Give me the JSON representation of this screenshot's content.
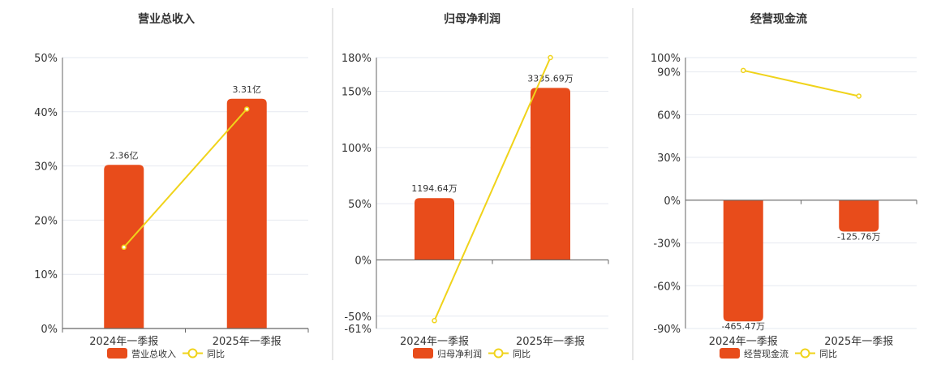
{
  "colors": {
    "bar": "#e84c1b",
    "line": "#f0d31a",
    "grid": "#e6e9f0",
    "axis": "#666666",
    "divider": "#cccccc"
  },
  "chart_data": [
    {
      "type": "bar",
      "title": "营业总收入",
      "categories": [
        "2024年一季报",
        "2025年一季报"
      ],
      "series": [
        {
          "name": "营业总收入",
          "type": "bar",
          "values": [
            30.2,
            42.4
          ],
          "labels": [
            "2.36亿",
            "3.31亿"
          ]
        },
        {
          "name": "同比",
          "type": "line",
          "values": [
            15.0,
            40.5
          ]
        }
      ],
      "ylim": [
        0,
        50
      ],
      "yticks": [
        {
          "value": 0,
          "label": "0%"
        },
        {
          "value": 10,
          "label": "10%"
        },
        {
          "value": 20,
          "label": "20%"
        },
        {
          "value": 30,
          "label": "30%"
        },
        {
          "value": 40,
          "label": "40%"
        },
        {
          "value": 50,
          "label": "50%"
        }
      ],
      "grid": true,
      "legend": "bottom"
    },
    {
      "type": "bar",
      "title": "归母净利润",
      "categories": [
        "2024年一季报",
        "2025年一季报"
      ],
      "series": [
        {
          "name": "归母净利润",
          "type": "bar",
          "values": [
            55,
            153
          ],
          "labels": [
            "1194.64万",
            "3335.69万"
          ]
        },
        {
          "name": "同比",
          "type": "line",
          "values": [
            -54,
            180
          ]
        }
      ],
      "ylim": [
        -61,
        180
      ],
      "yticks": [
        {
          "value": -61,
          "label": "-61%"
        },
        {
          "value": -50,
          "label": "-50%"
        },
        {
          "value": 0,
          "label": "0%"
        },
        {
          "value": 50,
          "label": "50%"
        },
        {
          "value": 100,
          "label": "100%"
        },
        {
          "value": 150,
          "label": "150%"
        },
        {
          "value": 180,
          "label": "180%"
        }
      ],
      "grid": true,
      "legend": "bottom"
    },
    {
      "type": "bar",
      "title": "经营现金流",
      "categories": [
        "2024年一季报",
        "2025年一季报"
      ],
      "series": [
        {
          "name": "经营现金流",
          "type": "bar",
          "values": [
            -85,
            -22
          ],
          "labels": [
            "-465.47万",
            "-125.76万"
          ]
        },
        {
          "name": "同比",
          "type": "line",
          "values": [
            91,
            73
          ]
        }
      ],
      "ylim": [
        -90,
        100
      ],
      "yticks": [
        {
          "value": -90,
          "label": "-90%"
        },
        {
          "value": -60,
          "label": "-60%"
        },
        {
          "value": -30,
          "label": "-30%"
        },
        {
          "value": 0,
          "label": "0%"
        },
        {
          "value": 30,
          "label": "30%"
        },
        {
          "value": 60,
          "label": "60%"
        },
        {
          "value": 90,
          "label": "90%"
        },
        {
          "value": 100,
          "label": "100%"
        }
      ],
      "grid": true,
      "legend": "bottom"
    }
  ]
}
